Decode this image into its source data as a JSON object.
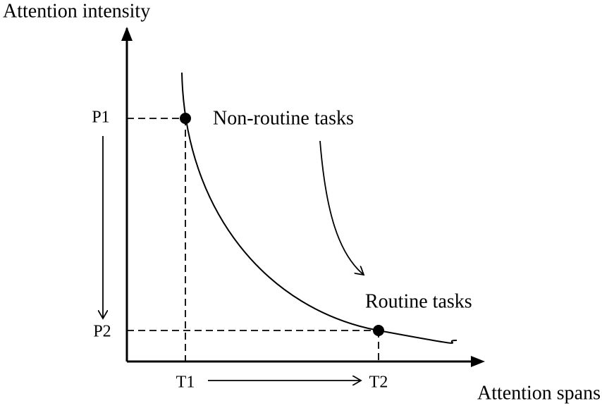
{
  "axes": {
    "y_label": "Attention intensity",
    "x_label": "Attention spans"
  },
  "points": [
    {
      "y_label": "P1",
      "x_label": "T1"
    },
    {
      "y_label": "P2",
      "x_label": "T2"
    }
  ],
  "annotations": {
    "start": "Non-routine tasks",
    "end": "Routine tasks"
  }
}
